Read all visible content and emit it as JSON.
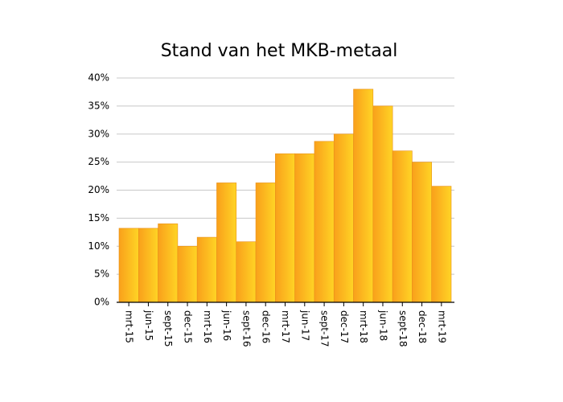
{
  "chart_data": {
    "type": "bar",
    "title": "Stand van het MKB-metaal",
    "categories": [
      "mrt-15",
      "jun-15",
      "sept-15",
      "dec-15",
      "mrt-16",
      "jun-16",
      "sept-16",
      "dec-16",
      "mrt-17",
      "jun-17",
      "sept-17",
      "dec-17",
      "mrt-18",
      "jun-18",
      "sept-18",
      "dec-18",
      "mrt-19"
    ],
    "values": [
      13.2,
      13.2,
      14,
      10,
      11.6,
      21.3,
      10.8,
      21.3,
      26.5,
      26.5,
      28.7,
      30,
      38,
      35,
      27,
      25,
      20.7
    ],
    "colors": [
      "#f9a01b",
      "#ffd425"
    ],
    "ylim": [
      0,
      40
    ],
    "yticks": [
      {
        "value": 0,
        "label": "0%"
      },
      {
        "value": 5,
        "label": "5%"
      },
      {
        "value": 10,
        "label": "10%"
      },
      {
        "value": 15,
        "label": "15%"
      },
      {
        "value": 20,
        "label": "20%"
      },
      {
        "value": 25,
        "label": "25%"
      },
      {
        "value": 30,
        "label": "30%"
      },
      {
        "value": 35,
        "label": "35%"
      },
      {
        "value": 40,
        "label": "40%"
      }
    ],
    "grid": true
  }
}
